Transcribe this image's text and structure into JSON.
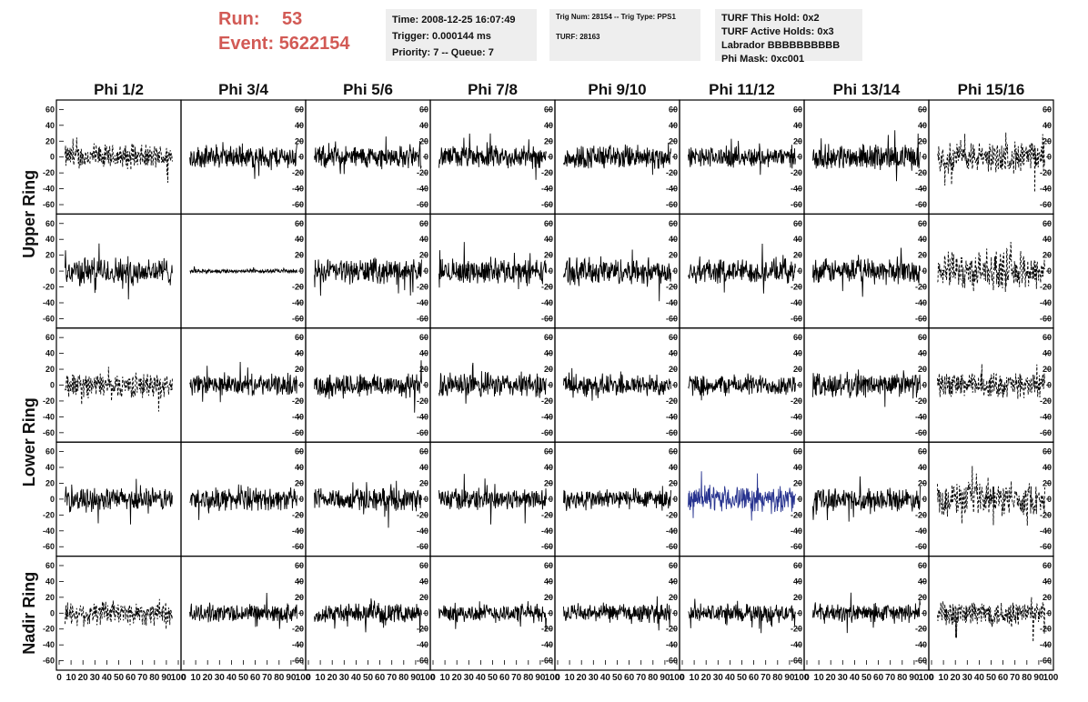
{
  "header": {
    "run_label": "Run:",
    "run_value": "53",
    "event_label": "Event:",
    "event_value": "5622154"
  },
  "info_time": {
    "time": "Time: 2008-12-25 16:07:49",
    "trigger": "Trigger: 0.000144 ms",
    "priority": "Priority: 7 -- Queue: 7"
  },
  "info_trig": {
    "trig": "Trig Num: 28154 -- Trig Type: PPS1",
    "turf": "TURF: 28163"
  },
  "info_turf": {
    "this_hold": "TURF This Hold: 0x2",
    "active_holds": "TURF Active Holds: 0x3",
    "labrador": "Labrador BBBBBBBBBB",
    "phi_mask": "Phi Mask: 0xc001"
  },
  "colors": {
    "trace": "#000000",
    "highlight": "#27338f",
    "header_red": "#d25a55",
    "info_bg": "#eeeeee"
  },
  "chart_data": {
    "type": "line",
    "columns": [
      "Phi 1/2",
      "Phi 3/4",
      "Phi 5/6",
      "Phi 7/8",
      "Phi 9/10",
      "Phi 11/12",
      "Phi 13/14",
      "Phi 15/16"
    ],
    "row_labels": [
      "Upper Ring",
      "Lower Ring",
      "Nadir Ring"
    ],
    "xlim": [
      0,
      100
    ],
    "ylim": [
      -65,
      65
    ],
    "y_ticks": [
      -60,
      -40,
      -20,
      0,
      20,
      40,
      60
    ],
    "x_ticks": [
      0,
      10,
      20,
      30,
      40,
      50,
      60,
      70,
      80,
      90,
      100
    ],
    "x_tick_labels": [
      "0",
      "10",
      "20",
      "30",
      "40",
      "50",
      "60",
      "70",
      "80",
      "90",
      "100"
    ],
    "y_tick_labels": [
      "-60",
      "-40",
      "-20",
      "0",
      "20",
      "40",
      "60"
    ],
    "panels": [
      [
        {
          "amp": 12,
          "style": "dashed"
        },
        {
          "amp": 11,
          "style": "solid"
        },
        {
          "amp": 11,
          "style": "solid"
        },
        {
          "amp": 11,
          "style": "solid"
        },
        {
          "amp": 12,
          "style": "solid"
        },
        {
          "amp": 10,
          "style": "solid"
        },
        {
          "amp": 12,
          "style": "solid"
        },
        {
          "amp": 15,
          "style": "dashed"
        }
      ],
      [
        {
          "amp": 14,
          "style": "solid"
        },
        {
          "amp": 2,
          "style": "solid"
        },
        {
          "amp": 12,
          "style": "solid"
        },
        {
          "amp": 12,
          "style": "solid"
        },
        {
          "amp": 13,
          "style": "solid"
        },
        {
          "amp": 12,
          "style": "solid"
        },
        {
          "amp": 12,
          "style": "solid"
        },
        {
          "amp": 18,
          "style": "dashed"
        }
      ],
      [
        {
          "amp": 12,
          "style": "dashed"
        },
        {
          "amp": 10,
          "style": "solid"
        },
        {
          "amp": 12,
          "style": "solid"
        },
        {
          "amp": 12,
          "style": "solid"
        },
        {
          "amp": 11,
          "style": "solid"
        },
        {
          "amp": 10,
          "style": "solid"
        },
        {
          "amp": 12,
          "style": "solid"
        },
        {
          "amp": 12,
          "style": "dashed"
        }
      ],
      [
        {
          "amp": 11,
          "style": "solid"
        },
        {
          "amp": 11,
          "style": "solid"
        },
        {
          "amp": 11,
          "style": "solid"
        },
        {
          "amp": 11,
          "style": "solid"
        },
        {
          "amp": 10,
          "style": "solid"
        },
        {
          "amp": 12,
          "style": "blue"
        },
        {
          "amp": 11,
          "style": "solid"
        },
        {
          "amp": 16,
          "style": "dashed"
        }
      ],
      [
        {
          "amp": 12,
          "style": "dashed"
        },
        {
          "amp": 9,
          "style": "solid"
        },
        {
          "amp": 9,
          "style": "solid"
        },
        {
          "amp": 9,
          "style": "solid"
        },
        {
          "amp": 9,
          "style": "solid"
        },
        {
          "amp": 9,
          "style": "solid"
        },
        {
          "amp": 9,
          "style": "solid"
        },
        {
          "amp": 13,
          "style": "dashed"
        }
      ]
    ],
    "samples": 260
  }
}
